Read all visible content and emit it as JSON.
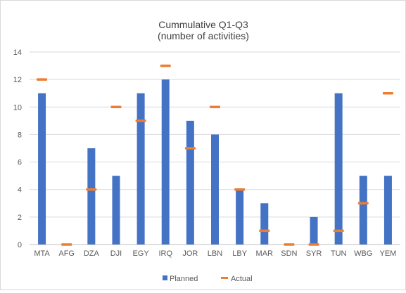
{
  "chart_data": {
    "type": "bar",
    "title": "Cummulative  Q1-Q3",
    "subtitle": "(number  of activities)",
    "categories": [
      "MTA",
      "AFG",
      "DZA",
      "DJI",
      "EGY",
      "IRQ",
      "JOR",
      "LBN",
      "LBY",
      "MAR",
      "SDN",
      "SYR",
      "TUN",
      "WBG",
      "YEM"
    ],
    "series": [
      {
        "name": "Planned",
        "kind": "bar",
        "color": "#4472C4",
        "values": [
          11,
          0,
          7,
          5,
          11,
          12,
          9,
          8,
          4,
          3,
          0,
          2,
          11,
          5,
          5
        ]
      },
      {
        "name": "Actual",
        "kind": "marker",
        "color": "#ED7D31",
        "values": [
          12,
          0,
          4,
          10,
          9,
          13,
          7,
          10,
          4,
          1,
          0,
          0,
          1,
          3,
          11
        ]
      }
    ],
    "ylim": [
      0,
      14
    ],
    "yticks": [
      "0",
      "2",
      "4",
      "6",
      "8",
      "10",
      "12",
      "14"
    ],
    "grid": true,
    "legend_position": "bottom"
  }
}
